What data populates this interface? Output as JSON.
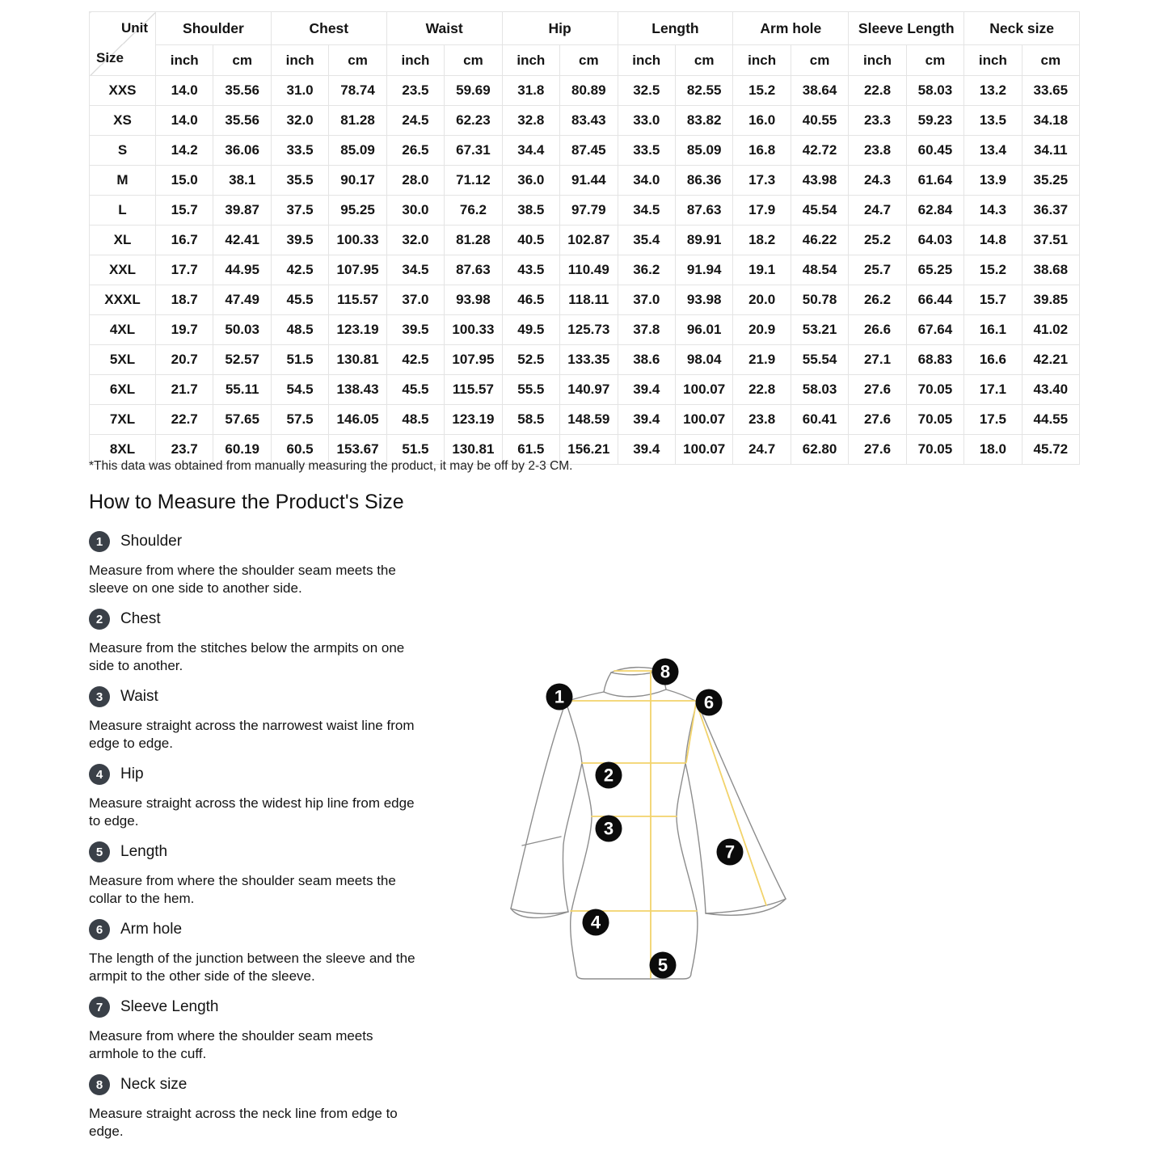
{
  "table": {
    "corner": {
      "unit": "Unit",
      "size": "Size"
    },
    "columns": [
      "Shoulder",
      "Chest",
      "Waist",
      "Hip",
      "Length",
      "Arm hole",
      "Sleeve Length",
      "Neck size"
    ],
    "unit_labels": [
      "inch",
      "cm"
    ],
    "rows": [
      {
        "size": "XXS",
        "values": [
          "14.0",
          "35.56",
          "31.0",
          "78.74",
          "23.5",
          "59.69",
          "31.8",
          "80.89",
          "32.5",
          "82.55",
          "15.2",
          "38.64",
          "22.8",
          "58.03",
          "13.2",
          "33.65"
        ]
      },
      {
        "size": "XS",
        "values": [
          "14.0",
          "35.56",
          "32.0",
          "81.28",
          "24.5",
          "62.23",
          "32.8",
          "83.43",
          "33.0",
          "83.82",
          "16.0",
          "40.55",
          "23.3",
          "59.23",
          "13.5",
          "34.18"
        ]
      },
      {
        "size": "S",
        "values": [
          "14.2",
          "36.06",
          "33.5",
          "85.09",
          "26.5",
          "67.31",
          "34.4",
          "87.45",
          "33.5",
          "85.09",
          "16.8",
          "42.72",
          "23.8",
          "60.45",
          "13.4",
          "34.11"
        ]
      },
      {
        "size": "M",
        "values": [
          "15.0",
          "38.1",
          "35.5",
          "90.17",
          "28.0",
          "71.12",
          "36.0",
          "91.44",
          "34.0",
          "86.36",
          "17.3",
          "43.98",
          "24.3",
          "61.64",
          "13.9",
          "35.25"
        ]
      },
      {
        "size": "L",
        "values": [
          "15.7",
          "39.87",
          "37.5",
          "95.25",
          "30.0",
          "76.2",
          "38.5",
          "97.79",
          "34.5",
          "87.63",
          "17.9",
          "45.54",
          "24.7",
          "62.84",
          "14.3",
          "36.37"
        ]
      },
      {
        "size": "XL",
        "values": [
          "16.7",
          "42.41",
          "39.5",
          "100.33",
          "32.0",
          "81.28",
          "40.5",
          "102.87",
          "35.4",
          "89.91",
          "18.2",
          "46.22",
          "25.2",
          "64.03",
          "14.8",
          "37.51"
        ]
      },
      {
        "size": "XXL",
        "values": [
          "17.7",
          "44.95",
          "42.5",
          "107.95",
          "34.5",
          "87.63",
          "43.5",
          "110.49",
          "36.2",
          "91.94",
          "19.1",
          "48.54",
          "25.7",
          "65.25",
          "15.2",
          "38.68"
        ]
      },
      {
        "size": "XXXL",
        "values": [
          "18.7",
          "47.49",
          "45.5",
          "115.57",
          "37.0",
          "93.98",
          "46.5",
          "118.11",
          "37.0",
          "93.98",
          "20.0",
          "50.78",
          "26.2",
          "66.44",
          "15.7",
          "39.85"
        ]
      },
      {
        "size": "4XL",
        "values": [
          "19.7",
          "50.03",
          "48.5",
          "123.19",
          "39.5",
          "100.33",
          "49.5",
          "125.73",
          "37.8",
          "96.01",
          "20.9",
          "53.21",
          "26.6",
          "67.64",
          "16.1",
          "41.02"
        ]
      },
      {
        "size": "5XL",
        "values": [
          "20.7",
          "52.57",
          "51.5",
          "130.81",
          "42.5",
          "107.95",
          "52.5",
          "133.35",
          "38.6",
          "98.04",
          "21.9",
          "55.54",
          "27.1",
          "68.83",
          "16.6",
          "42.21"
        ]
      },
      {
        "size": "6XL",
        "values": [
          "21.7",
          "55.11",
          "54.5",
          "138.43",
          "45.5",
          "115.57",
          "55.5",
          "140.97",
          "39.4",
          "100.07",
          "22.8",
          "58.03",
          "27.6",
          "70.05",
          "17.1",
          "43.40"
        ]
      },
      {
        "size": "7XL",
        "values": [
          "22.7",
          "57.65",
          "57.5",
          "146.05",
          "48.5",
          "123.19",
          "58.5",
          "148.59",
          "39.4",
          "100.07",
          "23.8",
          "60.41",
          "27.6",
          "70.05",
          "17.5",
          "44.55"
        ]
      },
      {
        "size": "8XL",
        "values": [
          "23.7",
          "60.19",
          "60.5",
          "153.67",
          "51.5",
          "130.81",
          "61.5",
          "156.21",
          "39.4",
          "100.07",
          "24.7",
          "62.80",
          "27.6",
          "70.05",
          "18.0",
          "45.72"
        ]
      }
    ],
    "footnote": "*This data was obtained from manually measuring the product, it may be off by 2-3 CM."
  },
  "guide": {
    "title": "How to Measure the Product's Size",
    "steps": [
      {
        "num": "1",
        "label": "Shoulder",
        "desc_lines": [
          "Measure from where the shoulder seam meets the",
          "sleeve on one side to another side."
        ]
      },
      {
        "num": "2",
        "label": "Chest",
        "desc_lines": [
          "Measure from the stitches below the armpits on one",
          "side to another."
        ]
      },
      {
        "num": "3",
        "label": "Waist",
        "desc_lines": [
          "Measure straight across the narrowest waist line from",
          "edge to edge."
        ]
      },
      {
        "num": "4",
        "label": "Hip",
        "desc_lines": [
          "Measure straight across the widest hip line from edge",
          "to edge."
        ]
      },
      {
        "num": "5",
        "label": "Length",
        "desc_lines": [
          "Measure from where the shoulder seam meets the",
          "collar to the hem."
        ]
      },
      {
        "num": "6",
        "label": "Arm hole",
        "desc_lines": [
          "The length of the junction between the sleeve and the",
          "armpit to the other side of the sleeve."
        ]
      },
      {
        "num": "7",
        "label": "Sleeve Length",
        "desc_lines": [
          "Measure from where the shoulder seam meets",
          "armhole to the cuff."
        ]
      },
      {
        "num": "8",
        "label": "Neck size",
        "desc_lines": [
          "Measure straight across the neck line from edge to",
          "edge."
        ]
      }
    ]
  },
  "diagram": {
    "badges": [
      "1",
      "2",
      "3",
      "4",
      "5",
      "6",
      "7",
      "8"
    ],
    "line_color": "#f2d36b",
    "outline_color": "#8d8d8d",
    "badge_color": "#0b0b0b"
  }
}
